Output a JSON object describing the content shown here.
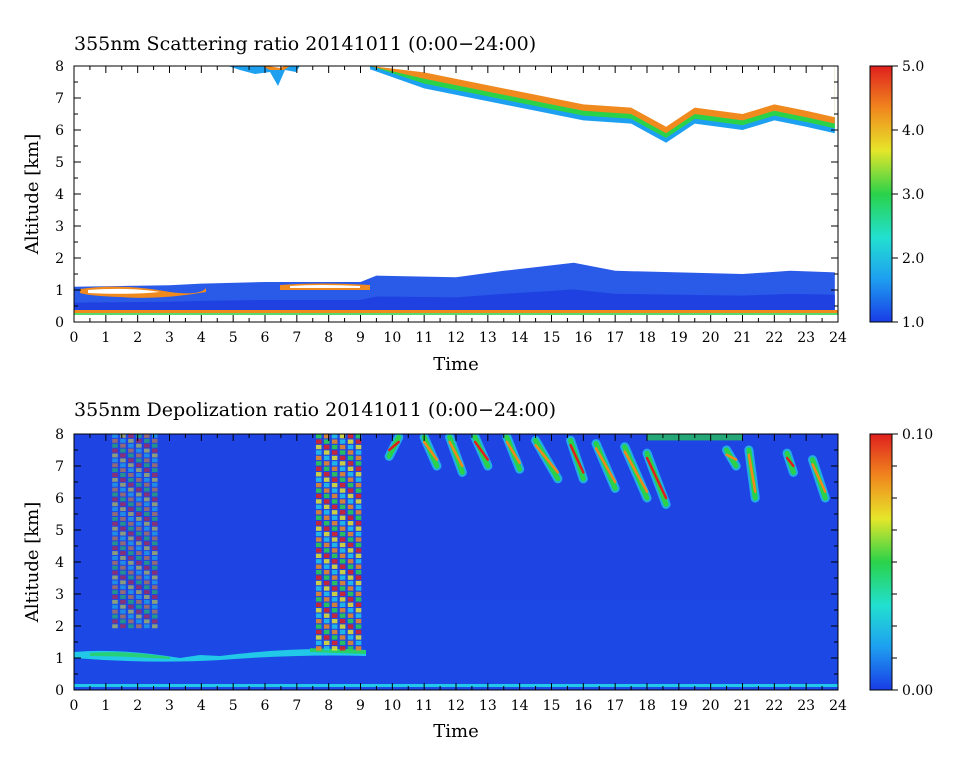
{
  "chart_data": [
    {
      "type": "heatmap",
      "title": "355nm Scattering ratio  20141011 (0:00−24:00)",
      "xlabel": "Time",
      "ylabel": "Altitude [km]",
      "xlim": [
        0,
        24
      ],
      "ylim": [
        0,
        8
      ],
      "x_ticks": [
        0,
        1,
        2,
        3,
        4,
        5,
        6,
        7,
        8,
        9,
        10,
        11,
        12,
        13,
        14,
        15,
        16,
        17,
        18,
        19,
        20,
        21,
        22,
        23,
        24
      ],
      "y_ticks": [
        0,
        1,
        2,
        3,
        4,
        5,
        6,
        7,
        8
      ],
      "colorbar": {
        "range": [
          1.0,
          5.0
        ],
        "tick_labels": [
          "5.0",
          "4.0",
          "3.0",
          "2.0",
          "1.0"
        ],
        "tick_values": [
          5.0,
          4.0,
          3.0,
          2.0,
          1.0
        ],
        "colors": [
          "#1a3ce6",
          "#1ea0f0",
          "#22e0d0",
          "#2ad24a",
          "#e6e62a",
          "#f08a1e",
          "#e0201e"
        ]
      },
      "features": {
        "boundary_layer_top_km": [
          [
            0,
            1.1
          ],
          [
            3,
            1.15
          ],
          [
            4,
            1.2
          ],
          [
            6,
            1.25
          ],
          [
            9,
            1.25
          ],
          [
            9.5,
            1.45
          ],
          [
            12,
            1.4
          ],
          [
            13.5,
            1.6
          ],
          [
            15.7,
            1.85
          ],
          [
            17,
            1.6
          ],
          [
            21,
            1.5
          ],
          [
            22.5,
            1.6
          ],
          [
            23.9,
            1.55
          ]
        ],
        "upper_cloud_base_km": [
          [
            9.3,
            7.9
          ],
          [
            11,
            7.3
          ],
          [
            13,
            6.9
          ],
          [
            14.5,
            6.6
          ],
          [
            16,
            6.3
          ],
          [
            17.5,
            6.2
          ],
          [
            18.6,
            5.6
          ],
          [
            19.5,
            6.2
          ],
          [
            21,
            6.0
          ],
          [
            22,
            6.3
          ],
          [
            23,
            6.1
          ],
          [
            23.9,
            5.9
          ]
        ],
        "near_surface_line_km": 0.3
      }
    },
    {
      "type": "heatmap",
      "title": "355nm Depolization ratio  20141011 (0:00−24:00)",
      "xlabel": "Time",
      "ylabel": "Altitude [km]",
      "xlim": [
        0,
        24
      ],
      "ylim": [
        0,
        8
      ],
      "x_ticks": [
        0,
        1,
        2,
        3,
        4,
        5,
        6,
        7,
        8,
        9,
        10,
        11,
        12,
        13,
        14,
        15,
        16,
        17,
        18,
        19,
        20,
        21,
        22,
        23,
        24
      ],
      "y_ticks": [
        0,
        1,
        2,
        3,
        4,
        5,
        6,
        7,
        8
      ],
      "colorbar": {
        "range": [
          0.0,
          0.1
        ],
        "tick_labels": [
          "0.10",
          "0.00"
        ],
        "tick_values": [
          0.1,
          0.0
        ],
        "colors": [
          "#1a3ce6",
          "#1ea0f0",
          "#22e0d0",
          "#2ad24a",
          "#e6e62a",
          "#f08a1e",
          "#e0201e"
        ]
      },
      "features": {
        "high_depolarization_columns_hours": [
          [
            1.2,
            2.7
          ],
          [
            7.6,
            9.1
          ]
        ],
        "boundary_layer_top_km": 1.05,
        "upper_cloud_streaks_hours": [
          9.5,
          23.9
        ]
      }
    }
  ]
}
